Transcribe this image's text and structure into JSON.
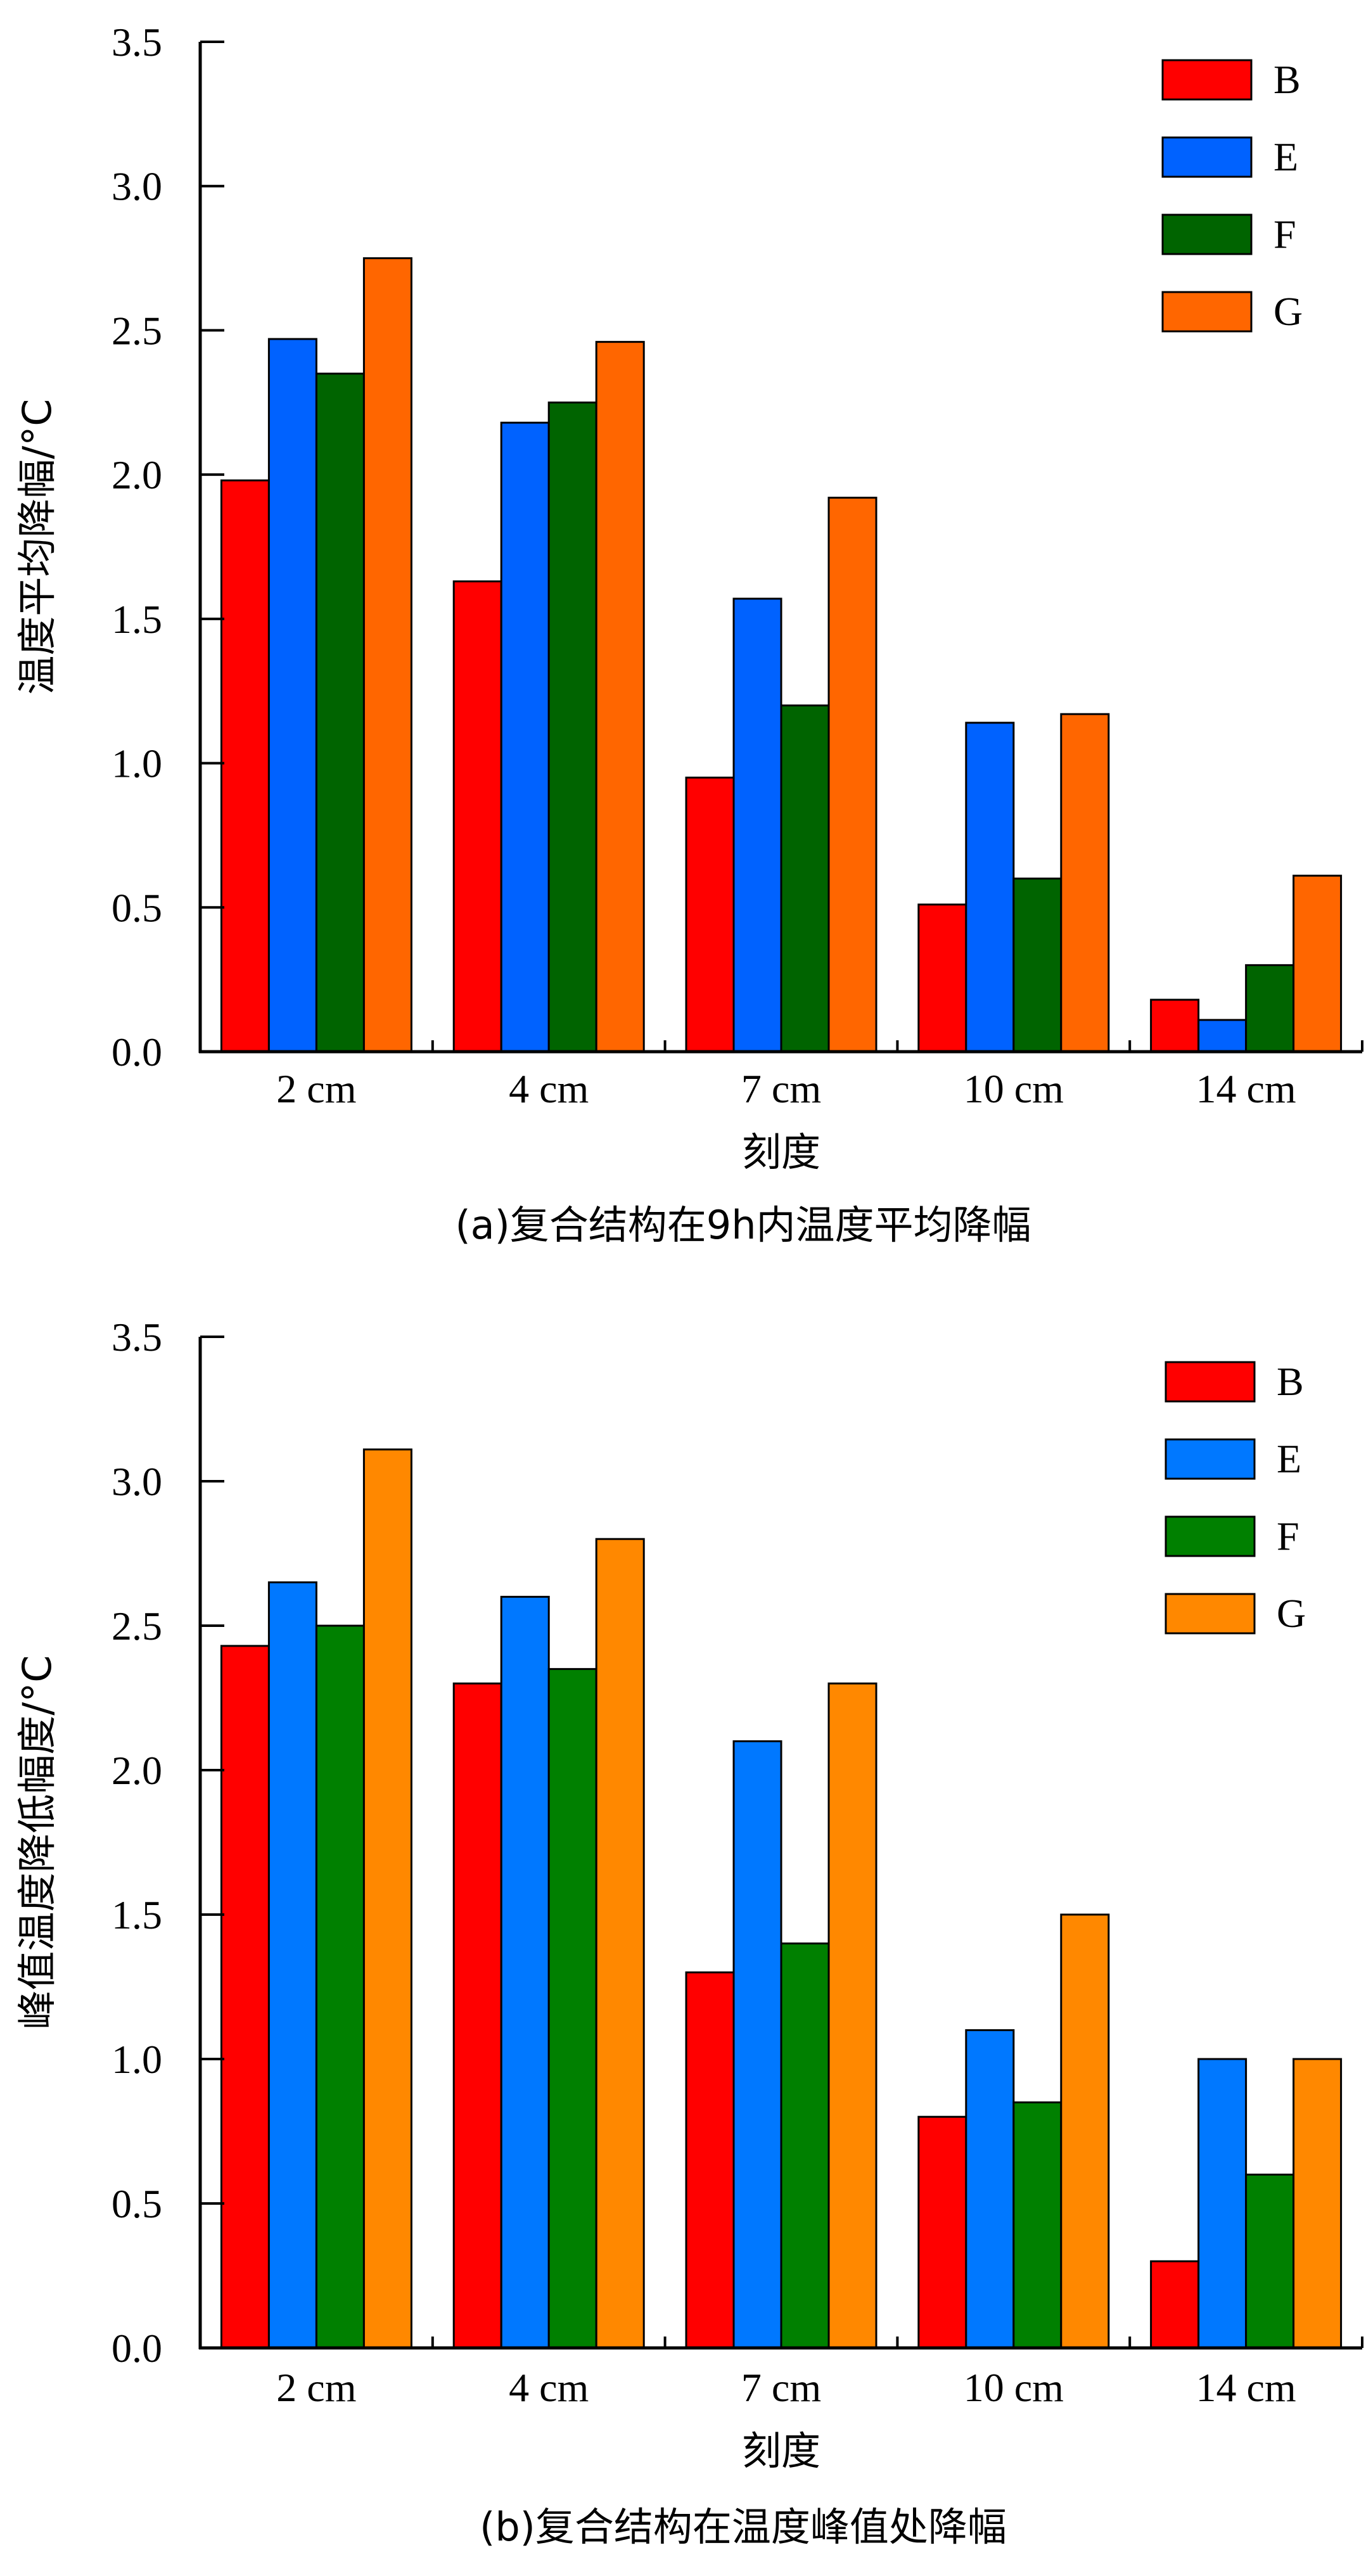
{
  "chart_data": [
    {
      "type": "bar",
      "panel": "a",
      "title": "",
      "caption": "(a)复合结构在9h内温度平均降幅",
      "xlabel": "刻度",
      "ylabel": "温度平均降幅/°C",
      "categories": [
        "2 cm",
        "4 cm",
        "7 cm",
        "10 cm",
        "14 cm"
      ],
      "ylim": [
        0,
        3.5
      ],
      "yticks": [
        "0.0",
        "0.5",
        "1.0",
        "1.5",
        "2.0",
        "2.5",
        "3.0",
        "3.5"
      ],
      "grid": false,
      "legend_position": "top-right",
      "series": [
        {
          "name": "B",
          "color": "#ff0000",
          "values": [
            1.98,
            1.63,
            0.95,
            0.51,
            0.18
          ]
        },
        {
          "name": "E",
          "color": "#0062ff",
          "values": [
            2.47,
            2.18,
            1.57,
            1.14,
            0.11
          ]
        },
        {
          "name": "F",
          "color": "#006400",
          "values": [
            2.35,
            2.25,
            1.2,
            0.6,
            0.3
          ]
        },
        {
          "name": "G",
          "color": "#ff6600",
          "values": [
            2.75,
            2.46,
            1.92,
            1.17,
            0.61
          ]
        }
      ]
    },
    {
      "type": "bar",
      "panel": "b",
      "title": "",
      "caption": "(b)复合结构在温度峰值处降幅",
      "xlabel": "刻度",
      "ylabel": "峰值温度降低幅度/°C",
      "categories": [
        "2 cm",
        "4 cm",
        "7 cm",
        "10 cm",
        "14 cm"
      ],
      "ylim": [
        0,
        3.5
      ],
      "yticks": [
        "0.0",
        "0.5",
        "1.0",
        "1.5",
        "2.0",
        "2.5",
        "3.0",
        "3.5"
      ],
      "grid": false,
      "legend_position": "top-right",
      "series": [
        {
          "name": "B",
          "color": "#ff0000",
          "values": [
            2.43,
            2.3,
            1.3,
            0.8,
            0.3
          ]
        },
        {
          "name": "E",
          "color": "#0078ff",
          "values": [
            2.65,
            2.6,
            2.1,
            1.1,
            1.0
          ]
        },
        {
          "name": "F",
          "color": "#008000",
          "values": [
            2.5,
            2.35,
            1.4,
            0.85,
            0.6
          ]
        },
        {
          "name": "G",
          "color": "#ff8800",
          "values": [
            3.11,
            2.8,
            2.3,
            1.5,
            1.0
          ]
        }
      ]
    }
  ]
}
